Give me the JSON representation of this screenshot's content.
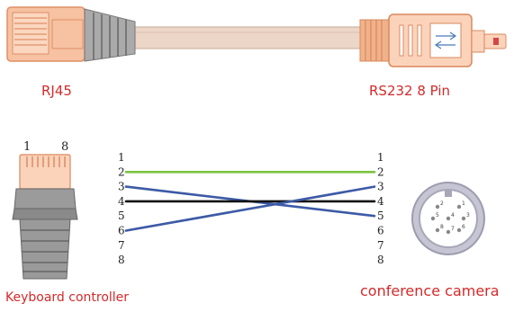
{
  "labels": {
    "rj45": "RJ45",
    "rs232": "RS232 8 Pin",
    "keyboard": "Keyboard controller",
    "camera": "conference camera",
    "rj45_first_pin": "1",
    "rj45_last_pin": "8"
  },
  "pins_left": [
    "1",
    "2",
    "3",
    "4",
    "5",
    "6",
    "7",
    "8"
  ],
  "pins_right": [
    "1",
    "2",
    "3",
    "4",
    "5",
    "6",
    "7",
    "8"
  ],
  "wires": [
    {
      "from": 2,
      "to": 2,
      "color": "#7cc242"
    },
    {
      "from": 3,
      "to": 5,
      "color": "#3c5aa6"
    },
    {
      "from": 4,
      "to": 4,
      "color": "#111111"
    },
    {
      "from": 6,
      "to": 3,
      "color": "#3c5aa6"
    }
  ],
  "din_pins": [
    "2",
    "1",
    "5",
    "4",
    "3",
    "8",
    "7",
    "6"
  ],
  "colors": {
    "label_red": "#d42a2a",
    "connector_peach": "#f3b48c",
    "connector_grey": "#8a8a8a",
    "cable": "#e9d2c2",
    "din_ring": "#b9b9c9"
  }
}
